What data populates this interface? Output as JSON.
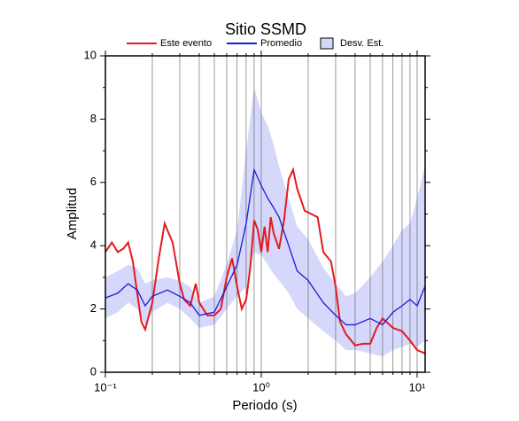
{
  "chart_data": {
    "type": "line",
    "title": "Sitio SSMD",
    "x_label": "Periodo (s)",
    "y_label": "Amplitud",
    "log_x": true,
    "xlim": [
      0.1,
      11.25
    ],
    "ylim": [
      0,
      10
    ],
    "xticks": [
      {
        "value": 0.1,
        "label": "10⁻¹"
      },
      {
        "value": 1,
        "label": "10⁰"
      },
      {
        "value": 10,
        "label": "10¹"
      }
    ],
    "x_minor_ticks": [
      0.2,
      0.3,
      0.4,
      0.5,
      0.6,
      0.7,
      0.8,
      0.9,
      2,
      3,
      4,
      5,
      6,
      7,
      8,
      9
    ],
    "yticks": [
      0,
      2,
      4,
      6,
      8,
      10
    ],
    "y_minor_ticks": [
      1,
      3,
      5,
      7,
      9
    ],
    "grid": true,
    "band": {
      "name": "Desv. Est.",
      "color": "#d6d8fb",
      "x": [
        0.1,
        0.12,
        0.14,
        0.16,
        0.18,
        0.2,
        0.25,
        0.3,
        0.35,
        0.4,
        0.5,
        0.6,
        0.7,
        0.8,
        0.9,
        1.0,
        1.1,
        1.2,
        1.3,
        1.5,
        1.7,
        2.0,
        2.5,
        3.0,
        3.5,
        4,
        5,
        6,
        7,
        8,
        9,
        10,
        11.2
      ],
      "upper": [
        3.0,
        3.2,
        3.4,
        3.3,
        2.8,
        2.9,
        3.0,
        2.9,
        2.7,
        2.2,
        2.4,
        3.4,
        4.5,
        7.0,
        9.0,
        8.2,
        7.8,
        7.2,
        6.5,
        5.5,
        4.6,
        4.2,
        3.3,
        2.8,
        2.4,
        2.5,
        3.0,
        3.5,
        4.0,
        4.5,
        4.7,
        5.5,
        6.5
      ],
      "lower": [
        1.7,
        1.9,
        2.2,
        2.0,
        1.5,
        1.9,
        2.2,
        2.0,
        1.7,
        1.4,
        1.5,
        2.0,
        2.4,
        2.7,
        3.8,
        3.7,
        3.4,
        3.1,
        2.9,
        2.5,
        2.0,
        1.7,
        1.3,
        1.0,
        0.7,
        0.7,
        0.6,
        0.5,
        0.7,
        0.8,
        0.9,
        0.8,
        1.0
      ]
    },
    "series": [
      {
        "name": "Este evento",
        "color": "#e41a1c",
        "x": [
          0.1,
          0.11,
          0.12,
          0.13,
          0.14,
          0.15,
          0.16,
          0.17,
          0.18,
          0.2,
          0.22,
          0.24,
          0.27,
          0.3,
          0.32,
          0.35,
          0.38,
          0.4,
          0.45,
          0.5,
          0.55,
          0.6,
          0.65,
          0.7,
          0.75,
          0.8,
          0.85,
          0.9,
          0.95,
          1.0,
          1.05,
          1.1,
          1.15,
          1.2,
          1.3,
          1.4,
          1.5,
          1.6,
          1.7,
          1.9,
          2.1,
          2.3,
          2.5,
          2.8,
          3.0,
          3.2,
          3.5,
          4.0,
          4.5,
          5.0,
          5.5,
          6,
          7,
          8,
          9,
          10,
          11.2
        ],
        "values": [
          3.8,
          4.1,
          3.8,
          3.9,
          4.1,
          3.5,
          2.5,
          1.6,
          1.35,
          2.2,
          3.6,
          4.7,
          4.1,
          2.8,
          2.3,
          2.1,
          2.8,
          2.2,
          1.8,
          1.8,
          2.0,
          3.0,
          3.6,
          2.7,
          2.0,
          2.3,
          3.3,
          4.8,
          4.5,
          3.8,
          4.6,
          3.8,
          4.9,
          4.4,
          3.9,
          4.8,
          6.1,
          6.4,
          5.8,
          5.1,
          5.0,
          4.9,
          3.8,
          3.5,
          2.7,
          1.6,
          1.2,
          0.85,
          0.9,
          0.9,
          1.4,
          1.7,
          1.4,
          1.3,
          1.0,
          0.7,
          0.6
        ]
      },
      {
        "name": "Promedio",
        "color": "#1a1adc",
        "x": [
          0.1,
          0.12,
          0.14,
          0.16,
          0.18,
          0.2,
          0.25,
          0.3,
          0.35,
          0.4,
          0.5,
          0.6,
          0.7,
          0.8,
          0.9,
          1.0,
          1.1,
          1.2,
          1.3,
          1.5,
          1.7,
          2.0,
          2.5,
          3.0,
          3.5,
          4,
          5,
          6,
          7,
          8,
          9,
          10,
          11.2
        ],
        "values": [
          2.35,
          2.5,
          2.8,
          2.6,
          2.1,
          2.4,
          2.6,
          2.4,
          2.2,
          1.8,
          1.9,
          2.7,
          3.4,
          4.7,
          6.4,
          5.9,
          5.5,
          5.2,
          4.9,
          4.0,
          3.2,
          2.9,
          2.2,
          1.8,
          1.5,
          1.5,
          1.7,
          1.5,
          1.9,
          2.1,
          2.3,
          2.1,
          2.7
        ]
      }
    ]
  }
}
